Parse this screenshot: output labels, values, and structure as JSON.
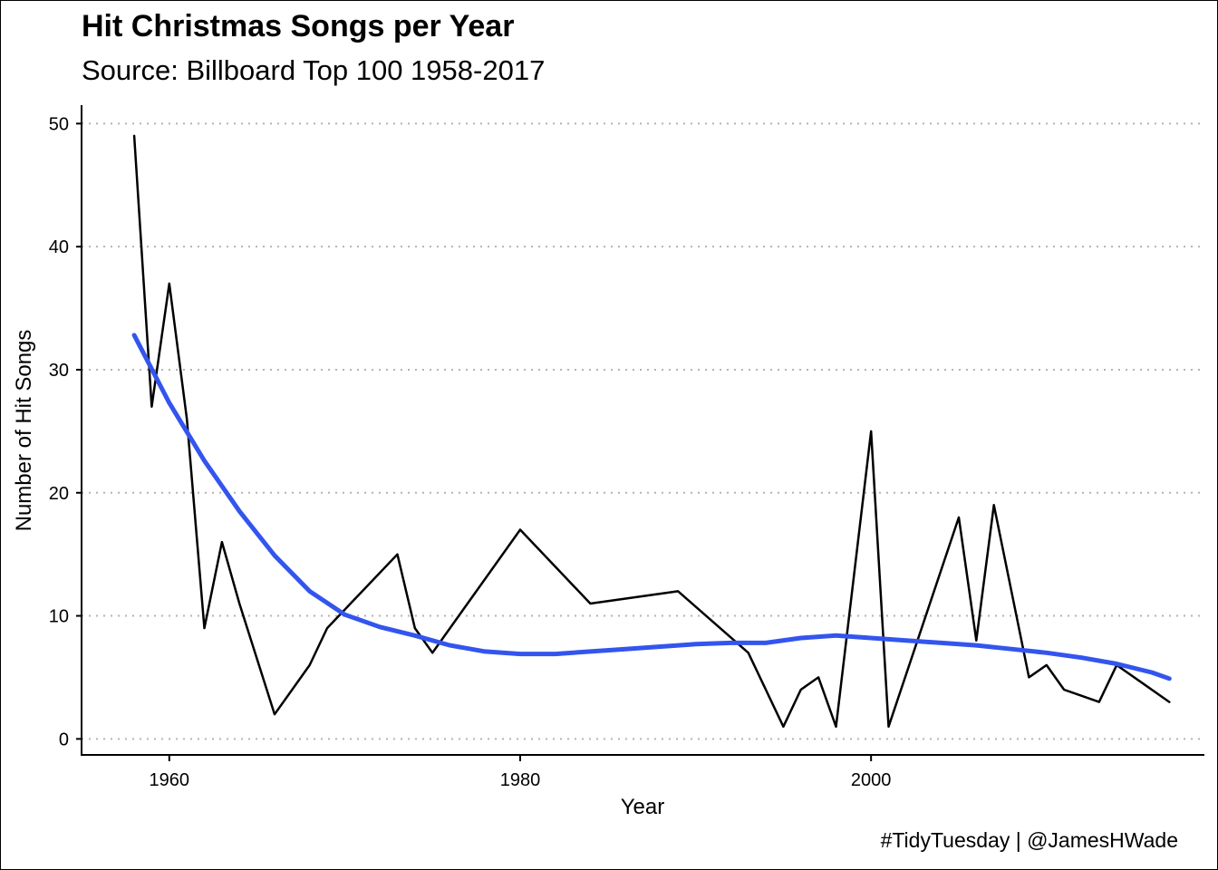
{
  "caption": "#TidyTuesday | @JamesHWade",
  "chart_data": {
    "type": "line",
    "title": "Hit Christmas Songs per Year",
    "subtitle": "Source: Billboard Top 100 1958-2017",
    "xlabel": "Year",
    "ylabel": "Number of Hit Songs",
    "xlim": [
      1955,
      2019
    ],
    "ylim": [
      -1.3,
      51.5
    ],
    "x_ticks": [
      1960,
      1980,
      2000
    ],
    "y_ticks": [
      0,
      10,
      20,
      30,
      40,
      50
    ],
    "grid": "horizontal dotted major",
    "legend": "none",
    "series": [
      {
        "color": "#000000",
        "x": [
          1958,
          1959,
          1960,
          1961,
          1962,
          1963,
          1964,
          1966,
          1968,
          1969,
          1973,
          1974,
          1975,
          1980,
          1984,
          1989,
          1993,
          1995,
          1996,
          1997,
          1998,
          2000,
          2001,
          2005,
          2006,
          2007,
          2009,
          2010,
          2011,
          2013,
          2014,
          2017
        ],
        "y": [
          49,
          27,
          37,
          26,
          9,
          16,
          11,
          2,
          6,
          9,
          15,
          9,
          7,
          17,
          11,
          12,
          7,
          1,
          4,
          5,
          1,
          25,
          1,
          18,
          8,
          19,
          5,
          6,
          4,
          3,
          6,
          3
        ]
      },
      {
        "color": "#3355ee",
        "x": [
          1958,
          1960,
          1962,
          1964,
          1966,
          1968,
          1970,
          1972,
          1974,
          1976,
          1978,
          1980,
          1982,
          1984,
          1986,
          1988,
          1990,
          1992,
          1994,
          1996,
          1998,
          2000,
          2002,
          2004,
          2006,
          2008,
          2010,
          2012,
          2014,
          2016,
          2017
        ],
        "y": [
          32.8,
          27.3,
          22.6,
          18.5,
          14.9,
          12.0,
          10.1,
          9.1,
          8.4,
          7.6,
          7.1,
          6.9,
          6.9,
          7.1,
          7.3,
          7.5,
          7.7,
          7.8,
          7.8,
          8.2,
          8.4,
          8.2,
          8.0,
          7.8,
          7.6,
          7.3,
          7.0,
          6.6,
          6.1,
          5.4,
          4.9
        ]
      }
    ]
  }
}
